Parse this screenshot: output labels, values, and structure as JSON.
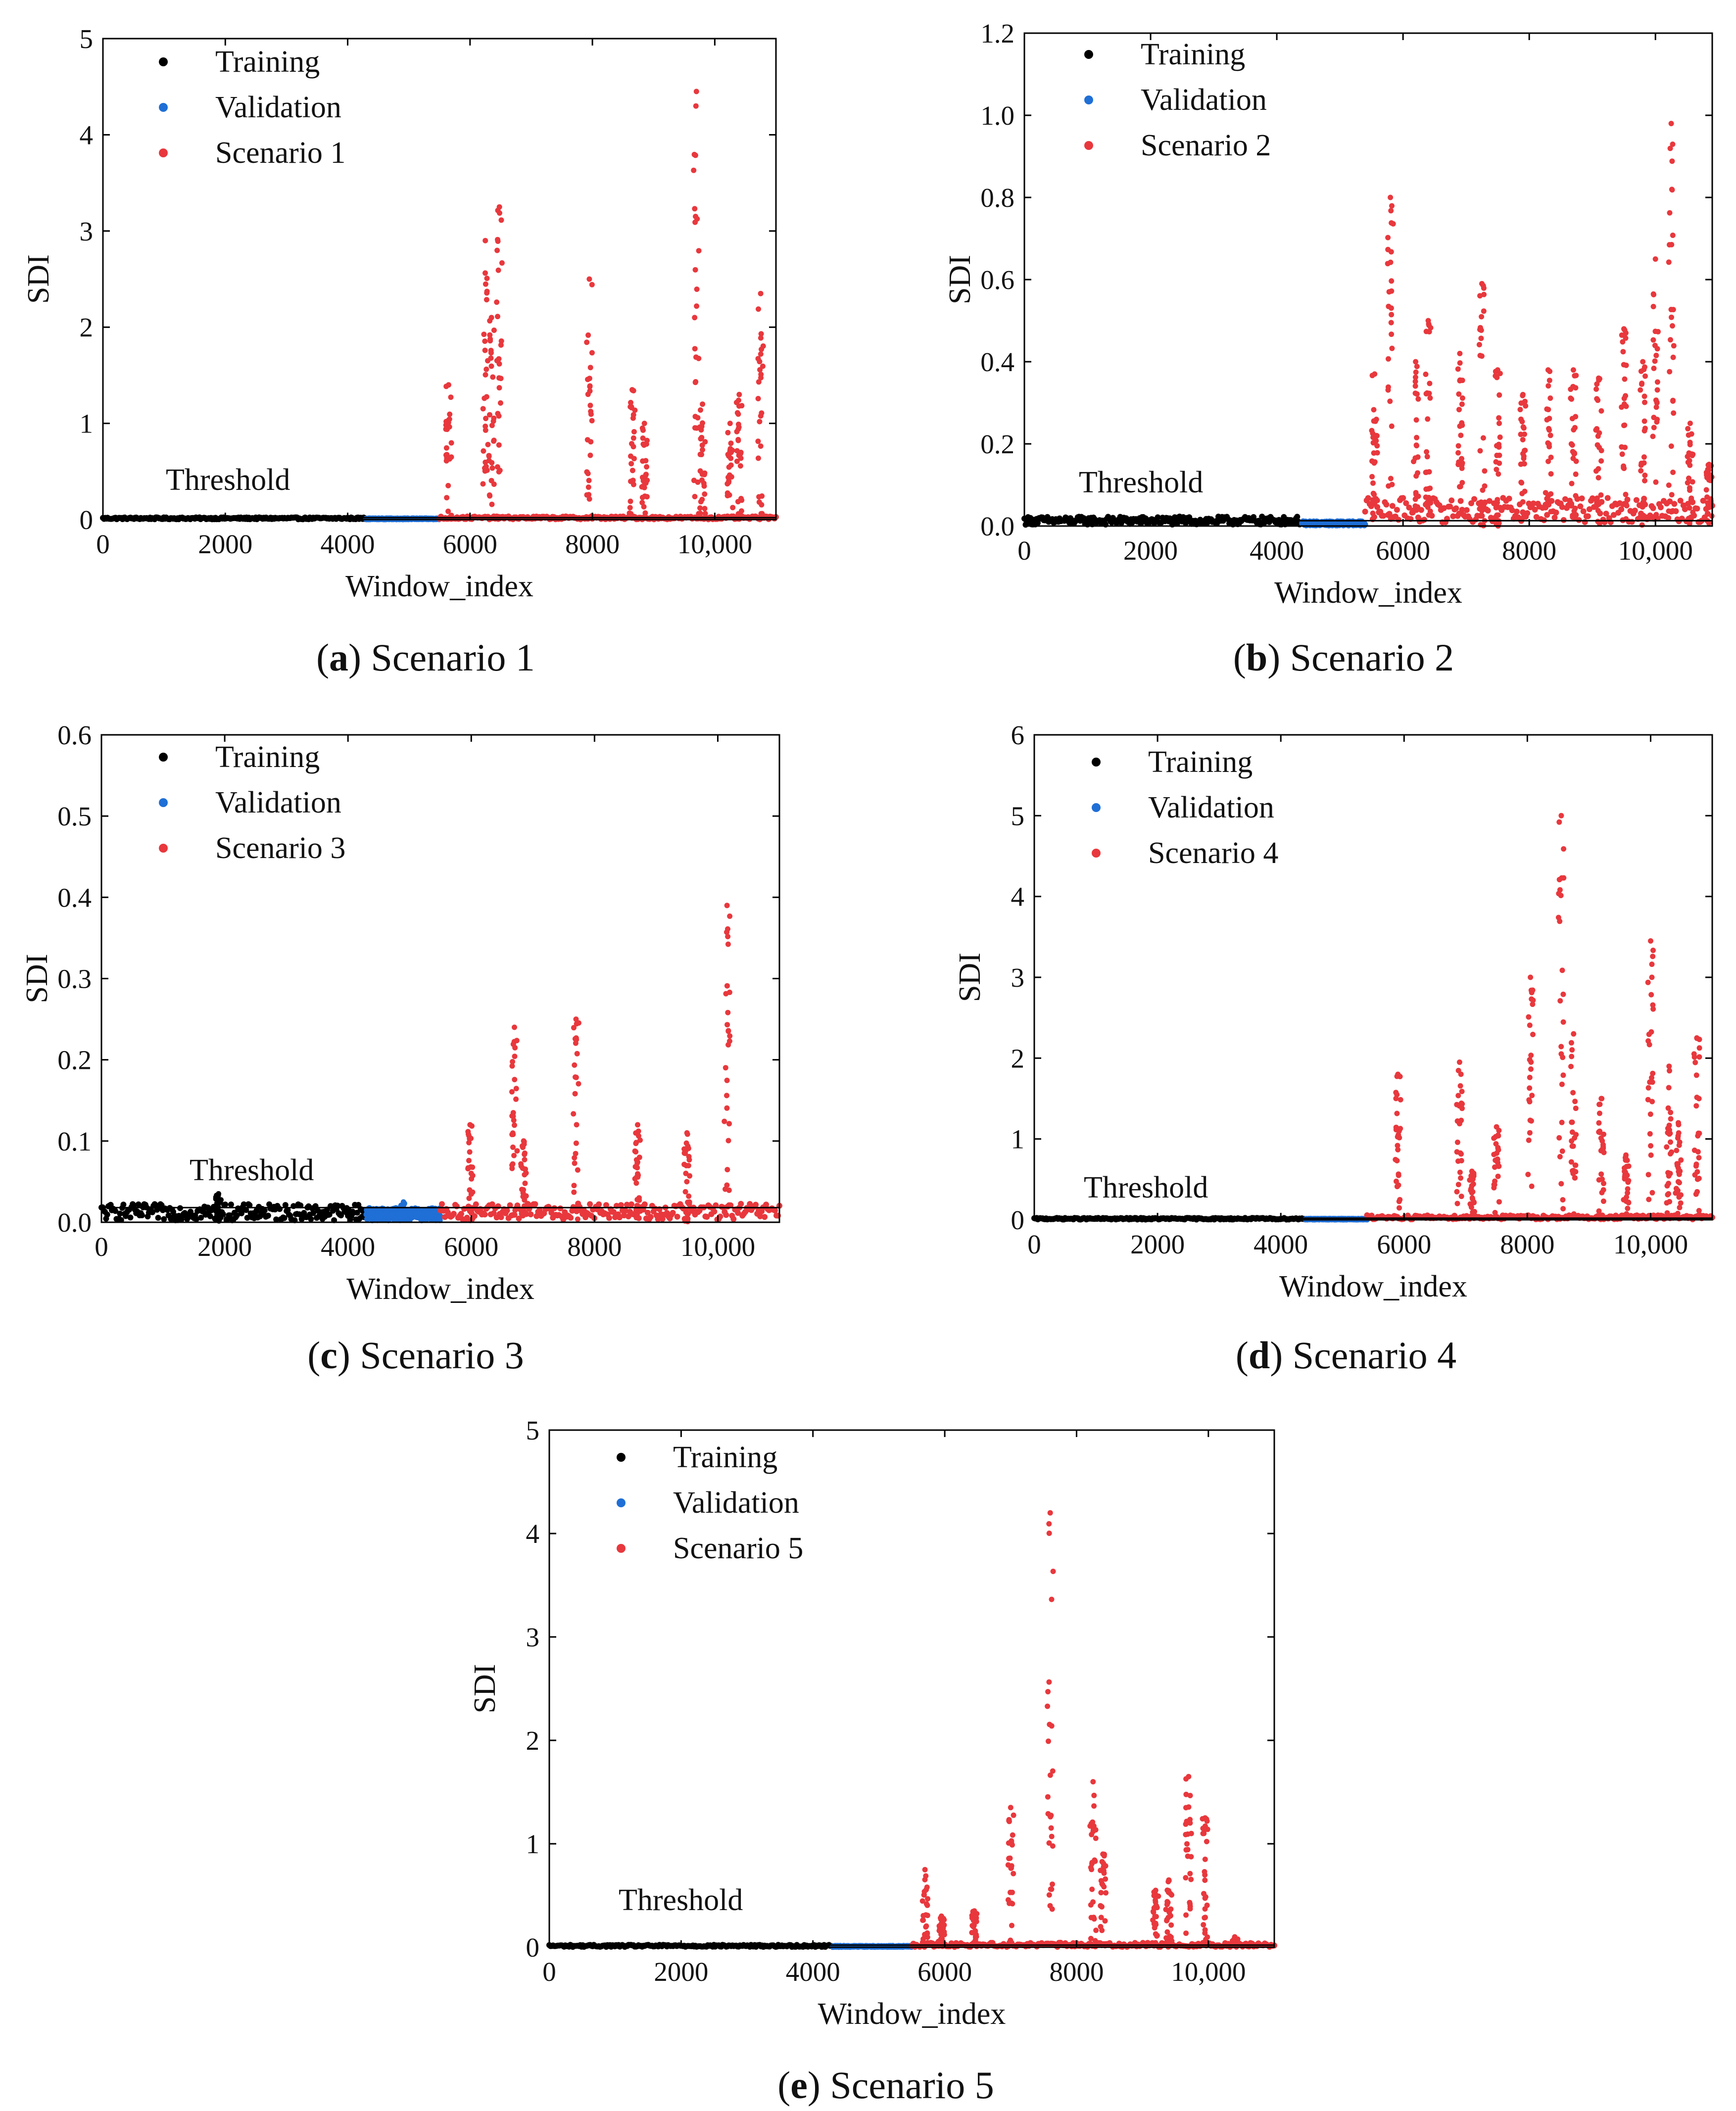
{
  "chart_data": [
    {
      "id": "a",
      "type": "scatter",
      "caption_letter": "a",
      "caption_text": "Scenario 1",
      "xlabel": "Window_index",
      "ylabel": "SDI",
      "xlim": [
        0,
        11000
      ],
      "ylim": [
        0,
        5
      ],
      "xticks": [
        0,
        2000,
        4000,
        6000,
        8000,
        10000
      ],
      "xtick_labels": [
        "0",
        "2000",
        "4000",
        "6000",
        "8000",
        "10,000"
      ],
      "yticks": [
        0,
        1,
        2,
        3,
        4,
        5
      ],
      "ytick_labels": [
        "0",
        "1",
        "2",
        "3",
        "4",
        "5"
      ],
      "threshold": 0.02,
      "threshold_label": "Threshold",
      "legend": [
        {
          "label": "Training",
          "color": "#000000"
        },
        {
          "label": "Validation",
          "color": "#1f6fd6"
        },
        {
          "label": "Scenario 1",
          "color": "#e8383d"
        }
      ],
      "series": [
        {
          "name": "Training",
          "x_range": [
            0,
            4300
          ],
          "base": 0.01,
          "noise": 0.02,
          "spikes": []
        },
        {
          "name": "Validation",
          "x_range": [
            4300,
            5500
          ],
          "base": 0.01,
          "noise": 0.01,
          "spikes": []
        },
        {
          "name": "Scenario 1",
          "x_range": [
            5500,
            11000
          ],
          "base": 0.01,
          "noise": 0.03,
          "spikes": [
            [
              5650,
              1.4
            ],
            [
              6250,
              2.9
            ],
            [
              6350,
              2.1
            ],
            [
              6480,
              3.25
            ],
            [
              7950,
              2.5
            ],
            [
              8650,
              1.35
            ],
            [
              8850,
              1.0
            ],
            [
              9700,
              4.45
            ],
            [
              9800,
              1.2
            ],
            [
              10250,
              1.0
            ],
            [
              10400,
              1.3
            ],
            [
              10750,
              2.35
            ]
          ]
        }
      ]
    },
    {
      "id": "b",
      "type": "scatter",
      "caption_letter": "b",
      "caption_text": "Scenario 2",
      "xlabel": "Window_index",
      "ylabel": "SDI",
      "xlim": [
        0,
        10900
      ],
      "ylim": [
        0,
        1.2
      ],
      "xticks": [
        0,
        2000,
        4000,
        6000,
        8000,
        10000
      ],
      "xtick_labels": [
        "0",
        "2000",
        "4000",
        "6000",
        "8000",
        "10,000"
      ],
      "yticks": [
        0,
        0.2,
        0.4,
        0.6,
        0.8,
        1.0,
        1.2
      ],
      "ytick_labels": [
        "0.0",
        "0.2",
        "0.4",
        "0.6",
        "0.8",
        "1.0",
        "1.2"
      ],
      "threshold": 0.013,
      "threshold_label": "Threshold",
      "legend": [
        {
          "label": "Training",
          "color": "#000000"
        },
        {
          "label": "Validation",
          "color": "#1f6fd6"
        },
        {
          "label": "Scenario 2",
          "color": "#e8383d"
        }
      ],
      "series": [
        {
          "name": "Training",
          "x_range": [
            0,
            4400
          ],
          "base": 0.01,
          "noise": 0.02,
          "spikes": []
        },
        {
          "name": "Validation",
          "x_range": [
            4400,
            5400
          ],
          "base": 0.005,
          "noise": 0.01,
          "spikes": []
        },
        {
          "name": "Scenario 2",
          "x_range": [
            5400,
            10900
          ],
          "base": 0.03,
          "noise": 0.06,
          "spikes": [
            [
              5550,
              0.37
            ],
            [
              5800,
              0.8
            ],
            [
              6200,
              0.4
            ],
            [
              6400,
              0.5
            ],
            [
              6900,
              0.42
            ],
            [
              7250,
              0.59
            ],
            [
              7500,
              0.38
            ],
            [
              7900,
              0.32
            ],
            [
              8300,
              0.38
            ],
            [
              8700,
              0.38
            ],
            [
              9100,
              0.36
            ],
            [
              9500,
              0.48
            ],
            [
              9800,
              0.4
            ],
            [
              10000,
              0.65
            ],
            [
              10250,
              0.98
            ],
            [
              10550,
              0.25
            ],
            [
              10850,
              0.15
            ]
          ]
        }
      ]
    },
    {
      "id": "c",
      "type": "scatter",
      "caption_letter": "c",
      "caption_text": "Scenario 3",
      "xlabel": "Window_index",
      "ylabel": "SDI",
      "xlim": [
        0,
        11000
      ],
      "ylim": [
        0,
        0.6
      ],
      "xticks": [
        0,
        2000,
        4000,
        6000,
        8000,
        10000
      ],
      "xtick_labels": [
        "0",
        "2000",
        "4000",
        "6000",
        "8000",
        "10,000"
      ],
      "yticks": [
        0,
        0.1,
        0.2,
        0.3,
        0.4,
        0.5,
        0.6
      ],
      "ytick_labels": [
        "0.0",
        "0.1",
        "0.2",
        "0.3",
        "0.4",
        "0.5",
        "0.6"
      ],
      "threshold": 0.018,
      "threshold_label": "Threshold",
      "legend": [
        {
          "label": "Training",
          "color": "#000000"
        },
        {
          "label": "Validation",
          "color": "#1f6fd6"
        },
        {
          "label": "Scenario 3",
          "color": "#e8383d"
        }
      ],
      "series": [
        {
          "name": "Training",
          "x_range": [
            0,
            4300
          ],
          "base": 0.008,
          "noise": 0.02,
          "spikes": [
            [
              1900,
              0.035
            ]
          ]
        },
        {
          "name": "Validation",
          "x_range": [
            4300,
            5500
          ],
          "base": 0.008,
          "noise": 0.015,
          "spikes": [
            [
              4900,
              0.025
            ]
          ]
        },
        {
          "name": "Scenario 3",
          "x_range": [
            5500,
            11000
          ],
          "base": 0.01,
          "noise": 0.02,
          "spikes": [
            [
              5980,
              0.12
            ],
            [
              6700,
              0.24
            ],
            [
              6850,
              0.1
            ],
            [
              7700,
              0.25
            ],
            [
              8700,
              0.12
            ],
            [
              9500,
              0.11
            ],
            [
              10150,
              0.39
            ]
          ]
        }
      ]
    },
    {
      "id": "d",
      "type": "scatter",
      "caption_letter": "d",
      "caption_text": "Scenario 4",
      "xlabel": "Window_index",
      "ylabel": "SDI",
      "xlim": [
        0,
        11000
      ],
      "ylim": [
        0,
        6
      ],
      "xticks": [
        0,
        2000,
        4000,
        6000,
        8000,
        10000
      ],
      "xtick_labels": [
        "0",
        "2000",
        "4000",
        "6000",
        "8000",
        "10,000"
      ],
      "yticks": [
        0,
        1,
        2,
        3,
        4,
        5,
        6
      ],
      "ytick_labels": [
        "0",
        "1",
        "2",
        "3",
        "4",
        "5",
        "6"
      ],
      "threshold": 0.02,
      "threshold_label": "Threshold",
      "legend": [
        {
          "label": "Training",
          "color": "#000000"
        },
        {
          "label": "Validation",
          "color": "#1f6fd6"
        },
        {
          "label": "Scenario 4",
          "color": "#e8383d"
        }
      ],
      "series": [
        {
          "name": "Training",
          "x_range": [
            0,
            4400
          ],
          "base": 0.01,
          "noise": 0.02,
          "spikes": []
        },
        {
          "name": "Validation",
          "x_range": [
            4400,
            5400
          ],
          "base": 0.01,
          "noise": 0.01,
          "spikes": []
        },
        {
          "name": "Scenario 4",
          "x_range": [
            5400,
            11000
          ],
          "base": 0.02,
          "noise": 0.05,
          "spikes": [
            [
              5900,
              1.8
            ],
            [
              6900,
              1.95
            ],
            [
              7100,
              0.6
            ],
            [
              7500,
              1.15
            ],
            [
              8050,
              3.0
            ],
            [
              8550,
              5.0
            ],
            [
              8750,
              2.3
            ],
            [
              9200,
              1.5
            ],
            [
              9600,
              0.8
            ],
            [
              10000,
              3.45
            ],
            [
              10300,
              1.9
            ],
            [
              10450,
              1.2
            ],
            [
              10750,
              2.25
            ]
          ]
        }
      ]
    },
    {
      "id": "e",
      "type": "scatter",
      "caption_letter": "e",
      "caption_text": "Scenario 5",
      "xlabel": "Window_index",
      "ylabel": "SDI",
      "xlim": [
        0,
        11000
      ],
      "ylim": [
        0,
        5
      ],
      "xticks": [
        0,
        2000,
        4000,
        6000,
        8000,
        10000
      ],
      "xtick_labels": [
        "0",
        "2000",
        "4000",
        "6000",
        "8000",
        "10,000"
      ],
      "yticks": [
        0,
        1,
        2,
        3,
        4,
        5
      ],
      "ytick_labels": [
        "0",
        "1",
        "2",
        "3",
        "4",
        "5"
      ],
      "threshold": 0.02,
      "threshold_label": "Threshold",
      "legend": [
        {
          "label": "Training",
          "color": "#000000"
        },
        {
          "label": "Validation",
          "color": "#1f6fd6"
        },
        {
          "label": "Scenario 5",
          "color": "#e8383d"
        }
      ],
      "series": [
        {
          "name": "Training",
          "x_range": [
            0,
            4300
          ],
          "base": 0.01,
          "noise": 0.02,
          "spikes": []
        },
        {
          "name": "Validation",
          "x_range": [
            4300,
            5500
          ],
          "base": 0.01,
          "noise": 0.01,
          "spikes": []
        },
        {
          "name": "Scenario 5",
          "x_range": [
            5500,
            11000
          ],
          "base": 0.01,
          "noise": 0.04,
          "spikes": [
            [
              5700,
              0.75
            ],
            [
              5950,
              0.3
            ],
            [
              6450,
              0.35
            ],
            [
              7000,
              1.35
            ],
            [
              7600,
              4.2
            ],
            [
              8250,
              1.6
            ],
            [
              8400,
              0.9
            ],
            [
              9200,
              0.55
            ],
            [
              9400,
              0.65
            ],
            [
              9700,
              1.65
            ],
            [
              9950,
              1.25
            ],
            [
              10400,
              0.1
            ]
          ]
        }
      ]
    }
  ]
}
